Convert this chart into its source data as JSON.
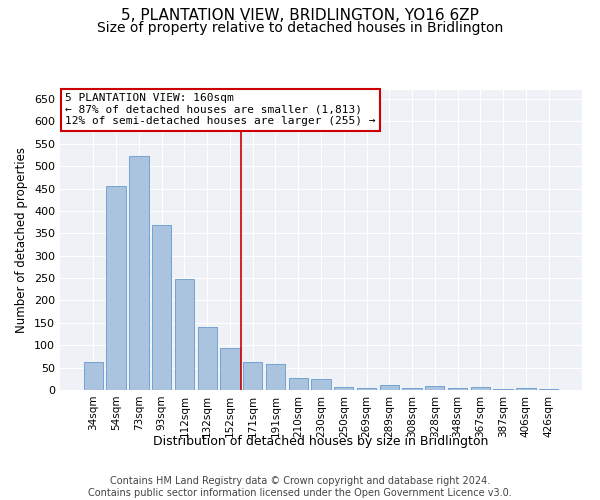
{
  "title": "5, PLANTATION VIEW, BRIDLINGTON, YO16 6ZP",
  "subtitle": "Size of property relative to detached houses in Bridlington",
  "xlabel": "Distribution of detached houses by size in Bridlington",
  "ylabel": "Number of detached properties",
  "categories": [
    "34sqm",
    "54sqm",
    "73sqm",
    "93sqm",
    "112sqm",
    "132sqm",
    "152sqm",
    "171sqm",
    "191sqm",
    "210sqm",
    "230sqm",
    "250sqm",
    "269sqm",
    "289sqm",
    "308sqm",
    "328sqm",
    "348sqm",
    "367sqm",
    "387sqm",
    "406sqm",
    "426sqm"
  ],
  "values": [
    62,
    456,
    522,
    368,
    248,
    140,
    93,
    62,
    57,
    27,
    25,
    6,
    5,
    12,
    5,
    8,
    4,
    7,
    2,
    5,
    3
  ],
  "bar_color": "#aac4e0",
  "bar_edge_color": "#6699cc",
  "vline_x": 6.5,
  "vline_color": "#cc0000",
  "annotation_text": "5 PLANTATION VIEW: 160sqm\n← 87% of detached houses are smaller (1,813)\n12% of semi-detached houses are larger (255) →",
  "annotation_box_color": "#ffffff",
  "annotation_box_edge_color": "#cc0000",
  "ylim": [
    0,
    670
  ],
  "yticks": [
    0,
    50,
    100,
    150,
    200,
    250,
    300,
    350,
    400,
    450,
    500,
    550,
    600,
    650
  ],
  "bg_color": "#eef2f7",
  "footer": "Contains HM Land Registry data © Crown copyright and database right 2024.\nContains public sector information licensed under the Open Government Licence v3.0.",
  "title_fontsize": 11,
  "subtitle_fontsize": 10,
  "xlabel_fontsize": 9,
  "ylabel_fontsize": 8.5,
  "footer_fontsize": 7,
  "tick_fontsize": 7.5,
  "ytick_fontsize": 8
}
